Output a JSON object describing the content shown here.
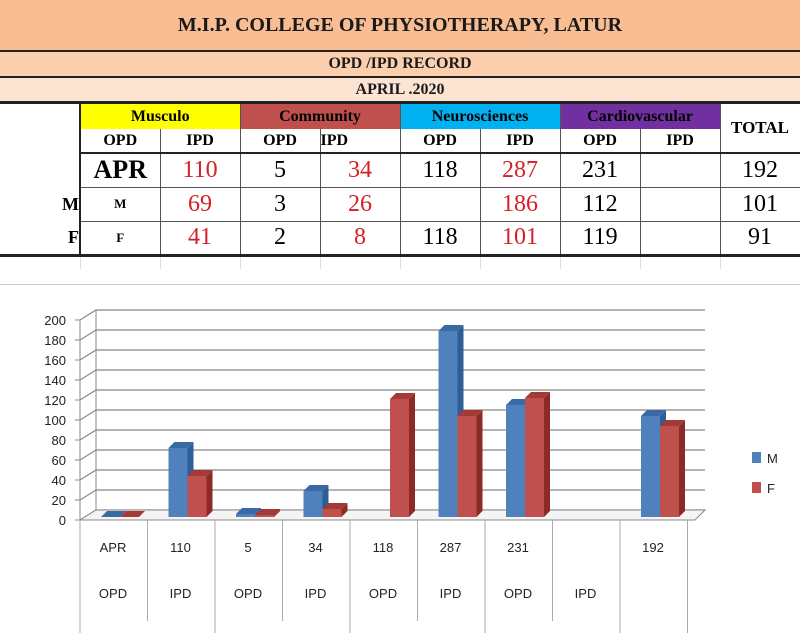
{
  "header": {
    "title": "M.I.P. COLLEGE OF PHYSIOTHERAPY, LATUR",
    "subtitle": "OPD /IPD RECORD",
    "period": "APRIL .2020"
  },
  "table": {
    "categories": [
      {
        "label": "Musculo",
        "color": "#ffff00"
      },
      {
        "label": "Community",
        "color": "#c0504d"
      },
      {
        "label": "Neurosciences",
        "color": "#00b0f0"
      },
      {
        "label": "Cardiovascular",
        "color": "#7030a0"
      }
    ],
    "total_label": "TOTAL",
    "sub_headers": [
      "OPD",
      "IPD",
      "OPD",
      "IPD",
      "OPD",
      "IPD",
      "OPD",
      "IPD"
    ],
    "rows": [
      {
        "side": "",
        "cells": [
          "APR",
          "110",
          "5",
          "34",
          "118",
          "287",
          "231",
          "",
          "192"
        ]
      },
      {
        "side": "M",
        "cells": [
          "M",
          "69",
          "3",
          "26",
          "",
          "186",
          "112",
          "",
          "101"
        ]
      },
      {
        "side": "F",
        "cells": [
          "F",
          "41",
          "2",
          "8",
          "118",
          "101",
          "119",
          "",
          "91"
        ]
      }
    ]
  },
  "chart_data": {
    "type": "bar",
    "style": "3d-clustered",
    "categories": [
      [
        "APR",
        "OPD"
      ],
      [
        "110",
        "IPD"
      ],
      [
        "5",
        "OPD"
      ],
      [
        "34",
        "IPD"
      ],
      [
        "118",
        "OPD"
      ],
      [
        "287",
        "IPD"
      ],
      [
        "231",
        "OPD"
      ],
      [
        "",
        "IPD"
      ],
      [
        "192",
        ""
      ]
    ],
    "series": [
      {
        "name": "M",
        "color": "#4f81bd",
        "values": [
          0,
          69,
          3,
          26,
          0,
          186,
          112,
          0,
          101
        ]
      },
      {
        "name": "F",
        "color": "#c0504d",
        "values": [
          0,
          41,
          2,
          8,
          118,
          101,
          119,
          0,
          91
        ]
      }
    ],
    "yticks": [
      0,
      20,
      40,
      60,
      80,
      100,
      120,
      140,
      160,
      180,
      200
    ],
    "ylim": [
      0,
      200
    ],
    "grid": true,
    "legend": "right"
  }
}
